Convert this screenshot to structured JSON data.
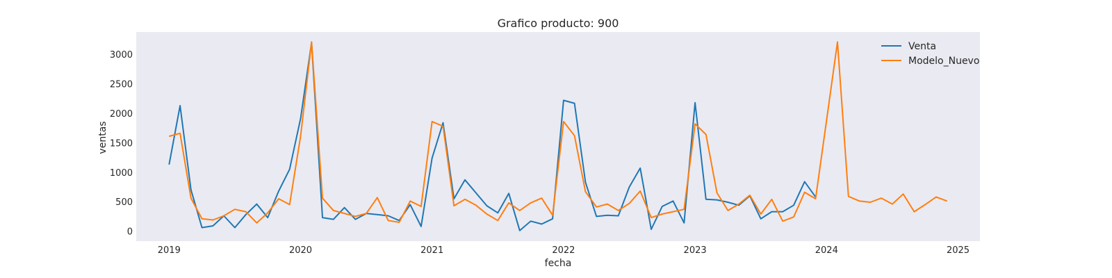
{
  "chart_data": {
    "type": "line",
    "title": "Grafico producto: 900",
    "xlabel": "fecha",
    "ylabel": "ventas",
    "x_ticks": [
      "2019",
      "2020",
      "2021",
      "2022",
      "2023",
      "2024",
      "2025"
    ],
    "y_ticks": [
      "0",
      "500",
      "1000",
      "1500",
      "2000",
      "2500",
      "3000"
    ],
    "xlim": [
      "2018-10",
      "2025-03"
    ],
    "ylim": [
      -170,
      3380
    ],
    "grid": false,
    "legend": "top-right",
    "background": "#eaeaf2",
    "series": [
      {
        "name": "Venta",
        "color": "#1f77b4",
        "x": [
          "2019-01",
          "2019-02",
          "2019-03",
          "2019-04",
          "2019-05",
          "2019-06",
          "2019-07",
          "2019-08",
          "2019-09",
          "2019-10",
          "2019-11",
          "2019-12",
          "2020-01",
          "2020-02",
          "2020-03",
          "2020-04",
          "2020-05",
          "2020-06",
          "2020-07",
          "2020-08",
          "2020-09",
          "2020-10",
          "2020-11",
          "2020-12",
          "2021-01",
          "2021-02",
          "2021-03",
          "2021-04",
          "2021-05",
          "2021-06",
          "2021-07",
          "2021-08",
          "2021-09",
          "2021-10",
          "2021-11",
          "2021-12",
          "2022-01",
          "2022-02",
          "2022-03",
          "2022-04",
          "2022-05",
          "2022-06",
          "2022-07",
          "2022-08",
          "2022-09",
          "2022-10",
          "2022-11",
          "2022-12",
          "2023-01",
          "2023-02",
          "2023-03",
          "2023-04",
          "2023-05",
          "2023-06",
          "2023-07",
          "2023-08",
          "2023-09",
          "2023-10",
          "2023-11",
          "2023-12"
        ],
        "y": [
          1130,
          2130,
          700,
          60,
          90,
          260,
          60,
          280,
          460,
          230,
          680,
          1050,
          1910,
          3200,
          230,
          200,
          400,
          200,
          300,
          280,
          260,
          180,
          450,
          80,
          1240,
          1840,
          550,
          870,
          650,
          430,
          310,
          640,
          10,
          170,
          120,
          210,
          2220,
          2170,
          830,
          250,
          270,
          260,
          750,
          1070,
          30,
          420,
          510,
          140,
          2180,
          540,
          530,
          490,
          440,
          600,
          210,
          330,
          330,
          440,
          840,
          580
        ]
      },
      {
        "name": "Modelo_Nuevo",
        "color": "#ff7f0e",
        "x": [
          "2019-01",
          "2019-02",
          "2019-03",
          "2019-04",
          "2019-05",
          "2019-06",
          "2019-07",
          "2019-08",
          "2019-09",
          "2019-10",
          "2019-11",
          "2019-12",
          "2020-01",
          "2020-02",
          "2020-03",
          "2020-04",
          "2020-05",
          "2020-06",
          "2020-07",
          "2020-08",
          "2020-09",
          "2020-10",
          "2020-11",
          "2020-12",
          "2021-01",
          "2021-02",
          "2021-03",
          "2021-04",
          "2021-05",
          "2021-06",
          "2021-07",
          "2021-08",
          "2021-09",
          "2021-10",
          "2021-11",
          "2021-12",
          "2022-01",
          "2022-02",
          "2022-03",
          "2022-04",
          "2022-05",
          "2022-06",
          "2022-07",
          "2022-08",
          "2022-09",
          "2022-10",
          "2022-11",
          "2022-12",
          "2023-01",
          "2023-02",
          "2023-03",
          "2023-04",
          "2023-05",
          "2023-06",
          "2023-07",
          "2023-08",
          "2023-09",
          "2023-10",
          "2023-11",
          "2023-12",
          "2024-01",
          "2024-02",
          "2024-03",
          "2024-04",
          "2024-05",
          "2024-06",
          "2024-07",
          "2024-08",
          "2024-09",
          "2024-10",
          "2024-11",
          "2024-12"
        ],
        "y": [
          1610,
          1660,
          560,
          210,
          190,
          260,
          370,
          330,
          140,
          310,
          550,
          450,
          1610,
          3210,
          560,
          350,
          300,
          250,
          300,
          570,
          180,
          150,
          510,
          420,
          1860,
          1780,
          430,
          540,
          440,
          290,
          180,
          480,
          350,
          480,
          560,
          270,
          1860,
          1620,
          670,
          410,
          460,
          350,
          470,
          680,
          230,
          290,
          330,
          370,
          1820,
          1640,
          650,
          350,
          460,
          610,
          290,
          540,
          170,
          240,
          660,
          550,
          1880,
          3210,
          590,
          510,
          490,
          560,
          460,
          630,
          330,
          450,
          580,
          510
        ]
      }
    ]
  }
}
